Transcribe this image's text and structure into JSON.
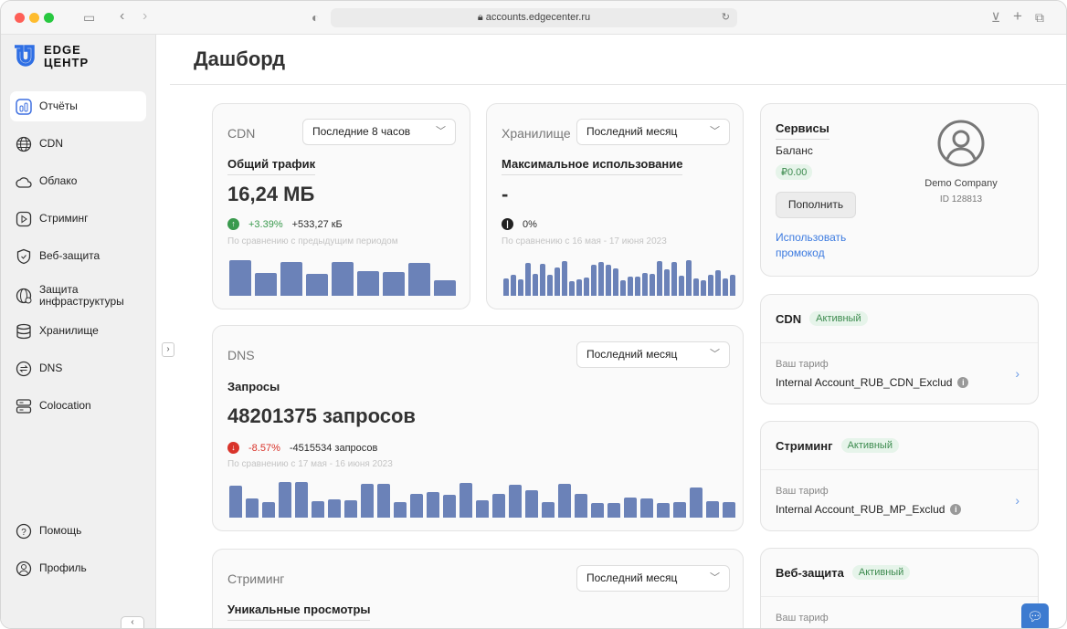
{
  "browser": {
    "url": "accounts.edgecenter.ru"
  },
  "logo": {
    "line1": "EDGE",
    "line2": "ЦЕНТР"
  },
  "sidebar": {
    "items": [
      {
        "label": "Отчёты",
        "icon": "chart-icon",
        "active": true
      },
      {
        "label": "CDN",
        "icon": "globe-icon"
      },
      {
        "label": "Облако",
        "icon": "cloud-icon"
      },
      {
        "label": "Стриминг",
        "icon": "play-icon"
      },
      {
        "label": "Веб-защита",
        "icon": "shield-icon"
      },
      {
        "label": "Защита инфраструктуры",
        "icon": "globe-lock-icon"
      },
      {
        "label": "Хранилище",
        "icon": "database-icon"
      },
      {
        "label": "DNS",
        "icon": "dns-icon"
      },
      {
        "label": "Colocation",
        "icon": "server-icon"
      }
    ],
    "bottom": [
      {
        "label": "Помощь",
        "icon": "help-icon"
      },
      {
        "label": "Профиль",
        "icon": "user-icon"
      }
    ]
  },
  "header": {
    "title": "Дашборд"
  },
  "cdn": {
    "title": "CDN",
    "period": "Последние 8 часов",
    "metric": "Общий трафик",
    "value": "16,24 МБ",
    "delta_pct": "+3.39%",
    "delta_abs": "+533,27 кБ",
    "compare": "По сравнению с предыдущим периодом",
    "bars": [
      39,
      25,
      37,
      24,
      37,
      27,
      26,
      36,
      17
    ]
  },
  "storage": {
    "title": "Хранилище",
    "period": "Последний месяц",
    "metric": "Максимальное использование",
    "value": "-",
    "delta_pct": "0%",
    "compare": "По сравнению с 16 мая - 17 июня 2023",
    "bars": [
      19,
      23,
      18,
      36,
      24,
      35,
      23,
      31,
      38,
      16,
      18,
      20,
      34,
      37,
      34,
      30,
      17,
      21,
      21,
      25,
      24,
      38,
      29,
      37,
      22,
      39,
      19,
      17,
      23,
      28,
      19,
      23
    ]
  },
  "dns": {
    "title": "DNS",
    "period": "Последний месяц",
    "metric": "Запросы",
    "value": "48201375 запросов",
    "delta_pct": "-8.57%",
    "delta_abs": "-4515534 запросов",
    "compare": "По сравнению с 17 мая - 16 июня 2023",
    "bars": [
      35,
      21,
      17,
      39,
      39,
      18,
      20,
      19,
      37,
      37,
      17,
      26,
      28,
      25,
      38,
      19,
      26,
      36,
      30,
      17,
      37,
      26,
      16,
      16,
      22,
      21,
      16,
      17,
      33,
      18,
      17
    ]
  },
  "streaming": {
    "title": "Стриминг",
    "period": "Последний месяц",
    "metric": "Уникальные просмотры"
  },
  "services": {
    "title": "Сервисы",
    "balance_label": "Баланс",
    "balance": "₽0.00",
    "topup": "Пополнить",
    "promo": "Использовать промокод",
    "company": "Demo Company",
    "id": "ID 128813"
  },
  "plans": [
    {
      "name": "CDN",
      "status": "Активный",
      "tarif_label": "Ваш тариф",
      "tarif": "Internal Account_RUB_CDN_Exclud"
    },
    {
      "name": "Стриминг",
      "status": "Активный",
      "tarif_label": "Ваш тариф",
      "tarif": "Internal Account_RUB_MP_Exclud"
    },
    {
      "name": "Веб-защита",
      "status": "Активный",
      "tarif_label": "Ваш тариф"
    }
  ],
  "colors": {
    "accent": "#3d6fe0",
    "bar": "#6b82b8",
    "up": "#3a9a4e",
    "down": "#d9342b",
    "link": "#3d7be0"
  }
}
